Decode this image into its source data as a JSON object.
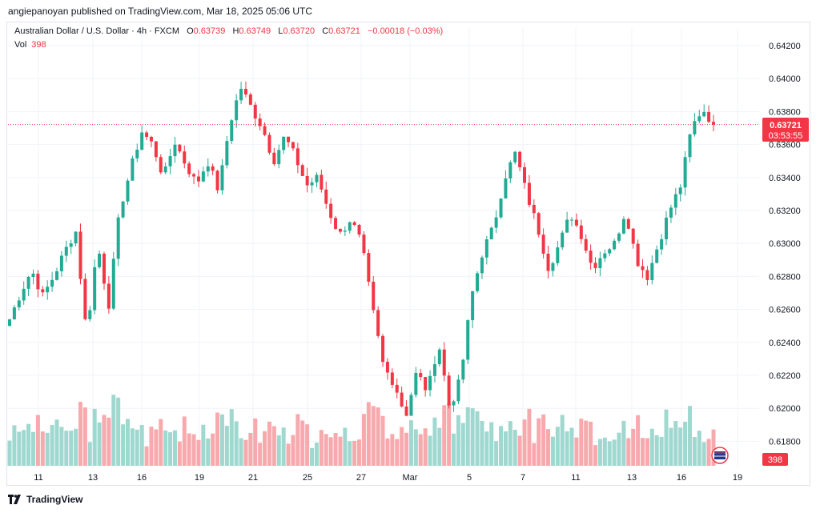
{
  "publisher": "angiepanoyan published on TradingView.com, Mar 18, 2025 05:06 UTC",
  "legend": {
    "symbol": "Australian Dollar / U.S. Dollar · 4h · FXCM",
    "o_label": "O",
    "o_value": "0.63739",
    "h_label": "H",
    "h_value": "0.63749",
    "l_label": "L",
    "l_value": "0.63720",
    "c_label": "C",
    "c_value": "0.63721",
    "change": "−0.00018 (−0.03%)"
  },
  "volume_legend": {
    "label": "Vol",
    "value": "398"
  },
  "price_tag": {
    "price": "0.63721",
    "countdown": "03:53:55"
  },
  "volume_tag": "398",
  "footer": {
    "brand": "TradingView"
  },
  "colors": {
    "up": "#22ab94",
    "down": "#f23645",
    "up_vol": "#9fd8cf",
    "down_vol": "#f7a9ad",
    "grid": "#f0f3fa",
    "axis_text": "#131722"
  },
  "chart_data": {
    "type": "candlestick",
    "title": "Australian Dollar / U.S. Dollar · 4h · FXCM",
    "y_ticks": [
      "0.64200",
      "0.64000",
      "0.63800",
      "0.63600",
      "0.63400",
      "0.63200",
      "0.63000",
      "0.62800",
      "0.62600",
      "0.62400",
      "0.62200",
      "0.62000",
      "0.61800"
    ],
    "x_ticks": [
      "11",
      "13",
      "16",
      "19",
      "21",
      "25",
      "27",
      "Mar",
      "5",
      "7",
      "11",
      "13",
      "16",
      "19"
    ],
    "last_price": 0.63721,
    "ohlc_anchors_close": [
      0.6254,
      0.627,
      0.6284,
      0.6268,
      0.628,
      0.6295,
      0.6308,
      0.6245,
      0.63,
      0.6262,
      0.632,
      0.6345,
      0.6368,
      0.636,
      0.634,
      0.6362,
      0.6348,
      0.6336,
      0.635,
      0.6332,
      0.6372,
      0.6395,
      0.6382,
      0.637,
      0.635,
      0.6365,
      0.6352,
      0.6335,
      0.634,
      0.632,
      0.6305,
      0.6315,
      0.63,
      0.626,
      0.6225,
      0.6215,
      0.6195,
      0.6222,
      0.621,
      0.624,
      0.62,
      0.6218,
      0.6268,
      0.6295,
      0.631,
      0.634,
      0.6355,
      0.633,
      0.631,
      0.6285,
      0.63,
      0.6318,
      0.6305,
      0.6285,
      0.6295,
      0.63,
      0.632,
      0.629,
      0.628,
      0.63,
      0.632,
      0.6335,
      0.637,
      0.6382,
      0.6372
    ],
    "volume_range": [
      0,
      400
    ]
  }
}
